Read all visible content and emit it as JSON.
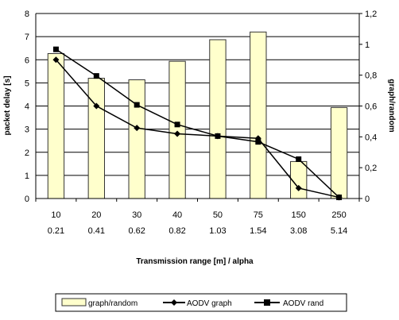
{
  "chart_data": {
    "type": "bar",
    "title": "",
    "categories": [
      [
        "10",
        "0.21"
      ],
      [
        "20",
        "0.41"
      ],
      [
        "30",
        "0.62"
      ],
      [
        "40",
        "0.82"
      ],
      [
        "50",
        "1.03"
      ],
      [
        "75",
        "1.54"
      ],
      [
        "150",
        "3.08"
      ],
      [
        "250",
        "5.14"
      ]
    ],
    "xlabel": "Transmission range [m] / alpha",
    "ylabel": "packet delay [s]",
    "y2label": "graph/random",
    "ylim": [
      0,
      8
    ],
    "y2lim": [
      0,
      1.2
    ],
    "yticks": [
      "0",
      "1",
      "2",
      "3",
      "4",
      "5",
      "6",
      "7",
      "8"
    ],
    "y2ticks": [
      "0",
      "0,2",
      "0,4",
      "0,6",
      "0,8",
      "1",
      "1,2"
    ],
    "series": [
      {
        "name": "graph/random",
        "kind": "bar",
        "axis": "right",
        "values": [
          0.94,
          0.78,
          0.77,
          0.89,
          1.03,
          1.08,
          0.24,
          0.59
        ]
      },
      {
        "name": "AODV graph",
        "kind": "line",
        "marker": "diamond",
        "axis": "left",
        "values": [
          6.0,
          4.0,
          3.05,
          2.8,
          2.7,
          2.6,
          0.45,
          0.05
        ]
      },
      {
        "name": "AODV rand",
        "kind": "line",
        "marker": "square",
        "axis": "left",
        "values": [
          6.45,
          5.3,
          4.05,
          3.2,
          2.7,
          2.45,
          1.7,
          0.05
        ]
      }
    ],
    "grid": "horizontal",
    "legend_position": "bottom",
    "colors": {
      "bar_fill": "#FFFFCC",
      "bar_edge": "#333333",
      "line": "#000000",
      "grid": "#000000"
    }
  }
}
